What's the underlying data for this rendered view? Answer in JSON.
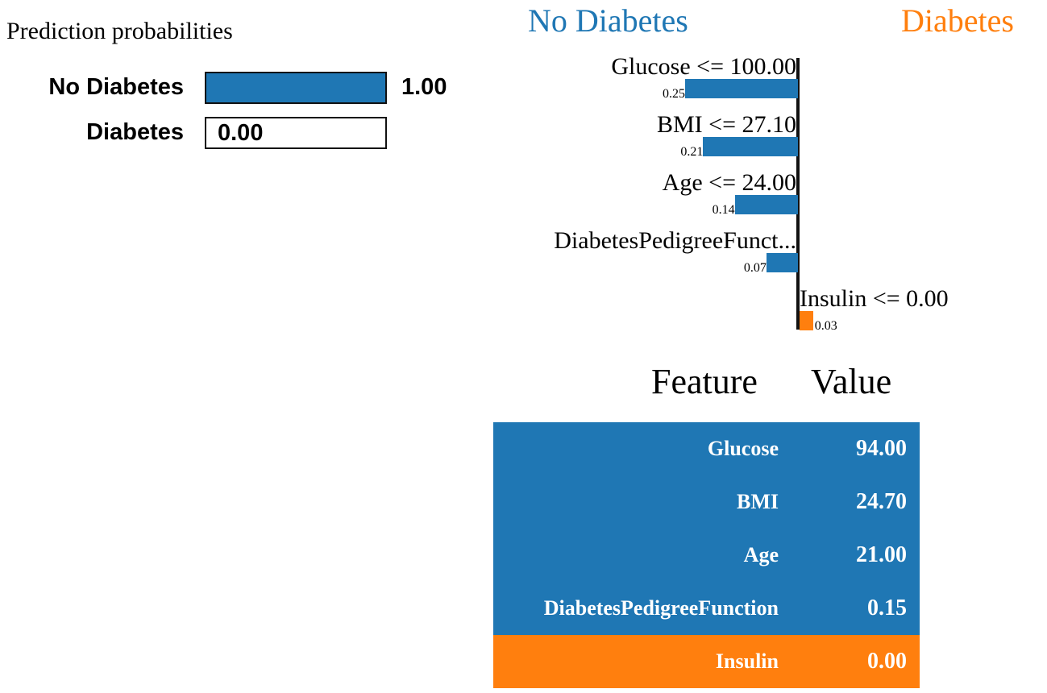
{
  "chart_data": [
    {
      "type": "bar",
      "title": "Prediction probabilities",
      "categories": [
        "No Diabetes",
        "Diabetes"
      ],
      "values": [
        1.0,
        0.0
      ],
      "value_labels": [
        "1.00",
        "0.00"
      ],
      "xlim": [
        0,
        1
      ],
      "colors": [
        "#1f77b4",
        "#ff7f0e"
      ]
    },
    {
      "type": "bar",
      "orientation": "horizontal",
      "negative_class": "No Diabetes",
      "positive_class": "Diabetes",
      "categories": [
        "Glucose <= 100.00",
        "BMI <= 27.10",
        "Age <= 24.00",
        "DiabetesPedigreeFunct...",
        "Insulin <= 0.00"
      ],
      "values": [
        -0.25,
        -0.21,
        -0.14,
        -0.07,
        0.03
      ],
      "value_labels": [
        "0.25",
        "0.21",
        "0.14",
        "0.07",
        "0.03"
      ],
      "colors": {
        "negative": "#1f77b4",
        "positive": "#ff7f0e"
      }
    },
    {
      "type": "table",
      "columns": [
        "Feature",
        "Value"
      ],
      "rows": [
        {
          "feature": "Glucose",
          "value": "94.00",
          "class": "negative"
        },
        {
          "feature": "BMI",
          "value": "24.70",
          "class": "negative"
        },
        {
          "feature": "Age",
          "value": "21.00",
          "class": "negative"
        },
        {
          "feature": "DiabetesPedigreeFunction",
          "value": "0.15",
          "class": "negative"
        },
        {
          "feature": "Insulin",
          "value": "0.00",
          "class": "positive"
        }
      ],
      "colors": {
        "negative": "#1f77b4",
        "positive": "#ff7f0e"
      }
    }
  ]
}
